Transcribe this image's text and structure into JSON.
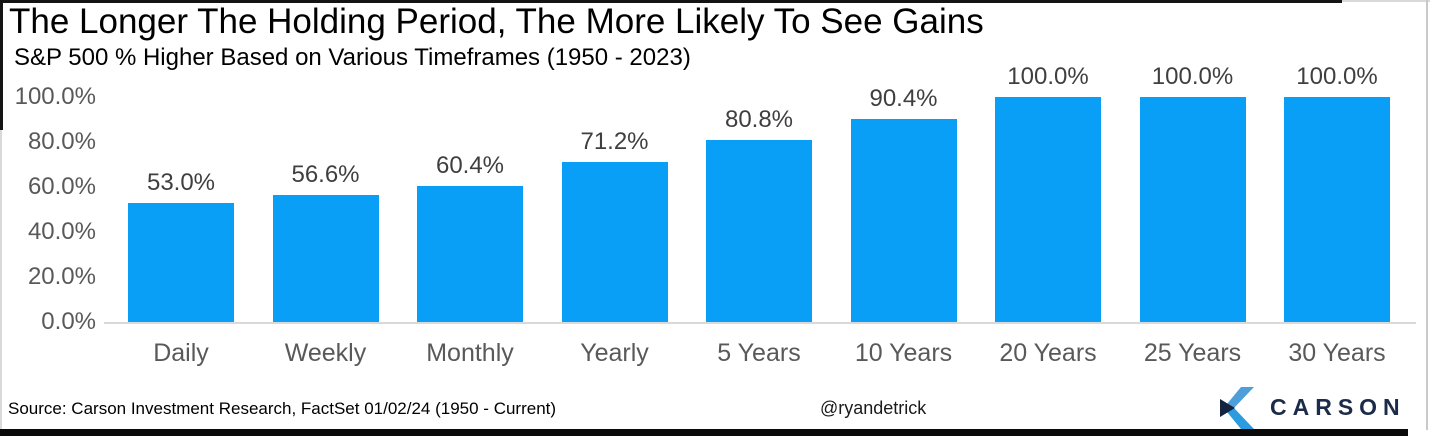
{
  "chart_data": {
    "type": "bar",
    "title": "The Longer The Holding Period, The More Likely To See Gains",
    "subtitle": "S&P 500 % Higher Based on Various Timeframes (1950 - 2023)",
    "categories": [
      "Daily",
      "Weekly",
      "Monthly",
      "Yearly",
      "5 Years",
      "10 Years",
      "20 Years",
      "25 Years",
      "30 Years"
    ],
    "values": [
      53.0,
      56.6,
      60.4,
      71.2,
      80.8,
      90.4,
      100.0,
      100.0,
      100.0
    ],
    "value_labels": [
      "53.0%",
      "56.6%",
      "60.4%",
      "71.2%",
      "80.8%",
      "90.4%",
      "100.0%",
      "100.0%",
      "100.0%"
    ],
    "xlabel": "",
    "ylabel": "",
    "ylim": [
      0,
      100
    ],
    "yticks": [
      0,
      20,
      40,
      60,
      80,
      100
    ],
    "ytick_labels": [
      "0.0%",
      "20.0%",
      "40.0%",
      "60.0%",
      "80.0%",
      "100.0%"
    ],
    "grid": false,
    "legend": "none",
    "bar_color": "#0a9ff7"
  },
  "footer": {
    "source": "Source: Carson Investment Research, FactSet 01/02/24 (1950 - Current)",
    "handle": "@ryandetrick",
    "brand": "CARSON"
  },
  "colors": {
    "bar": "#0a9ff7",
    "axis_label_gray": "#595959",
    "value_label_gray": "#3f3f3f",
    "baseline_gray": "#d9d9d9",
    "brand_navy": "#1c2b4a",
    "logo_light_blue": "#4e9ed9",
    "logo_bright_blue": "#2b9ce0",
    "logo_dark_navy": "#14243e"
  }
}
